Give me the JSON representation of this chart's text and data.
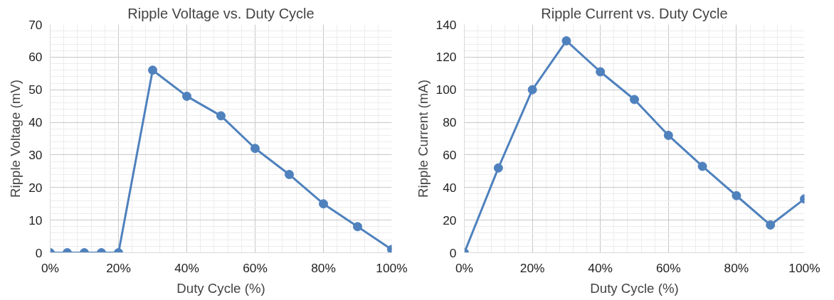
{
  "chart_data": [
    {
      "type": "line",
      "title": "Ripple Voltage vs. Duty Cycle",
      "xlabel": "Duty Cycle (%)",
      "ylabel": "Ripple Voltage (mV)",
      "x": [
        0,
        5,
        10,
        15,
        20,
        30,
        40,
        50,
        60,
        70,
        80,
        90,
        100
      ],
      "series": [
        {
          "color": "#4f81bd",
          "values": [
            0,
            0,
            0,
            0,
            0,
            56,
            48,
            42,
            32,
            24,
            15,
            8,
            1
          ]
        }
      ],
      "xlim": [
        0,
        100
      ],
      "xticks": [
        {
          "value": 0,
          "label": "0%"
        },
        {
          "value": 20,
          "label": "20%"
        },
        {
          "value": 40,
          "label": "40%"
        },
        {
          "value": 60,
          "label": "60%"
        },
        {
          "value": 80,
          "label": "80%"
        },
        {
          "value": 100,
          "label": "100%"
        }
      ],
      "ylim": [
        0,
        70
      ],
      "yticks": [
        0,
        10,
        20,
        30,
        40,
        50,
        60,
        70
      ],
      "grid": true,
      "marker": "circle",
      "line_style": "solid"
    },
    {
      "type": "line",
      "title": "Ripple Current vs. Duty Cycle",
      "xlabel": "Duty Cycle (%)",
      "ylabel": "Ripple Current (mA)",
      "x": [
        0,
        10,
        20,
        30,
        40,
        50,
        60,
        70,
        80,
        90,
        100
      ],
      "series": [
        {
          "color": "#4f81bd",
          "values": [
            0,
            52,
            100,
            130,
            111,
            94,
            72,
            53,
            35,
            17,
            33
          ]
        }
      ],
      "xlim": [
        0,
        100
      ],
      "xticks": [
        {
          "value": 0,
          "label": "0%"
        },
        {
          "value": 20,
          "label": "20%"
        },
        {
          "value": 40,
          "label": "40%"
        },
        {
          "value": 60,
          "label": "60%"
        },
        {
          "value": 80,
          "label": "80%"
        },
        {
          "value": 100,
          "label": "100%"
        }
      ],
      "ylim": [
        0,
        140
      ],
      "yticks": [
        0,
        20,
        40,
        60,
        80,
        100,
        120,
        140
      ],
      "grid": true,
      "marker": "circle",
      "line_style": "solid"
    }
  ]
}
